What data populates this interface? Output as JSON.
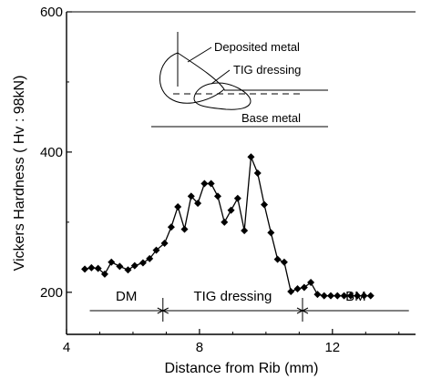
{
  "chart_data": {
    "type": "line",
    "xlabel": "Distance from Rib  (mm)",
    "ylabel": "Vickers Hardness  ( Hv : 98kN)",
    "xlim": [
      4,
      14.5
    ],
    "ylim": [
      140,
      600
    ],
    "xticks": [
      4,
      8,
      12
    ],
    "yticks": [
      200,
      400,
      600
    ],
    "xtick_labels": [
      "4",
      "8",
      "12"
    ],
    "ytick_labels": [
      "200",
      "400",
      "600"
    ],
    "grid": false,
    "series": [
      {
        "marker": "diamond",
        "color": "#000000",
        "x": [
          4.55,
          4.75,
          4.95,
          5.15,
          5.35,
          5.6,
          5.85,
          6.05,
          6.3,
          6.5,
          6.7,
          6.95,
          7.15,
          7.35,
          7.55,
          7.75,
          7.95,
          8.15,
          8.35,
          8.55,
          8.75,
          8.95,
          9.15,
          9.35,
          9.55,
          9.75,
          9.95,
          10.15,
          10.35,
          10.55,
          10.75,
          10.95,
          11.15,
          11.35,
          11.55,
          11.75,
          11.95,
          12.15,
          12.35,
          12.55,
          12.75,
          12.95,
          13.15
        ],
        "y": [
          233,
          235,
          234,
          226,
          243,
          237,
          232,
          238,
          242,
          248,
          260,
          270,
          293,
          322,
          290,
          337,
          327,
          355,
          355,
          337,
          300,
          317,
          334,
          288,
          393,
          370,
          325,
          285,
          247,
          243,
          201,
          205,
          207,
          214,
          197,
          195,
          195,
          195,
          195,
          195,
          195,
          195,
          195
        ]
      }
    ],
    "annotations": [
      "Deposited metal",
      "TIG dressing",
      "Base metal"
    ],
    "regions": [
      {
        "label": "DM",
        "x_start": 4.7,
        "x_end": 6.9
      },
      {
        "label": "TIG dressing",
        "x_start": 6.9,
        "x_end": 11.1
      },
      {
        "label": "BM",
        "x_start": 11.1,
        "x_end": 14.3
      }
    ]
  }
}
